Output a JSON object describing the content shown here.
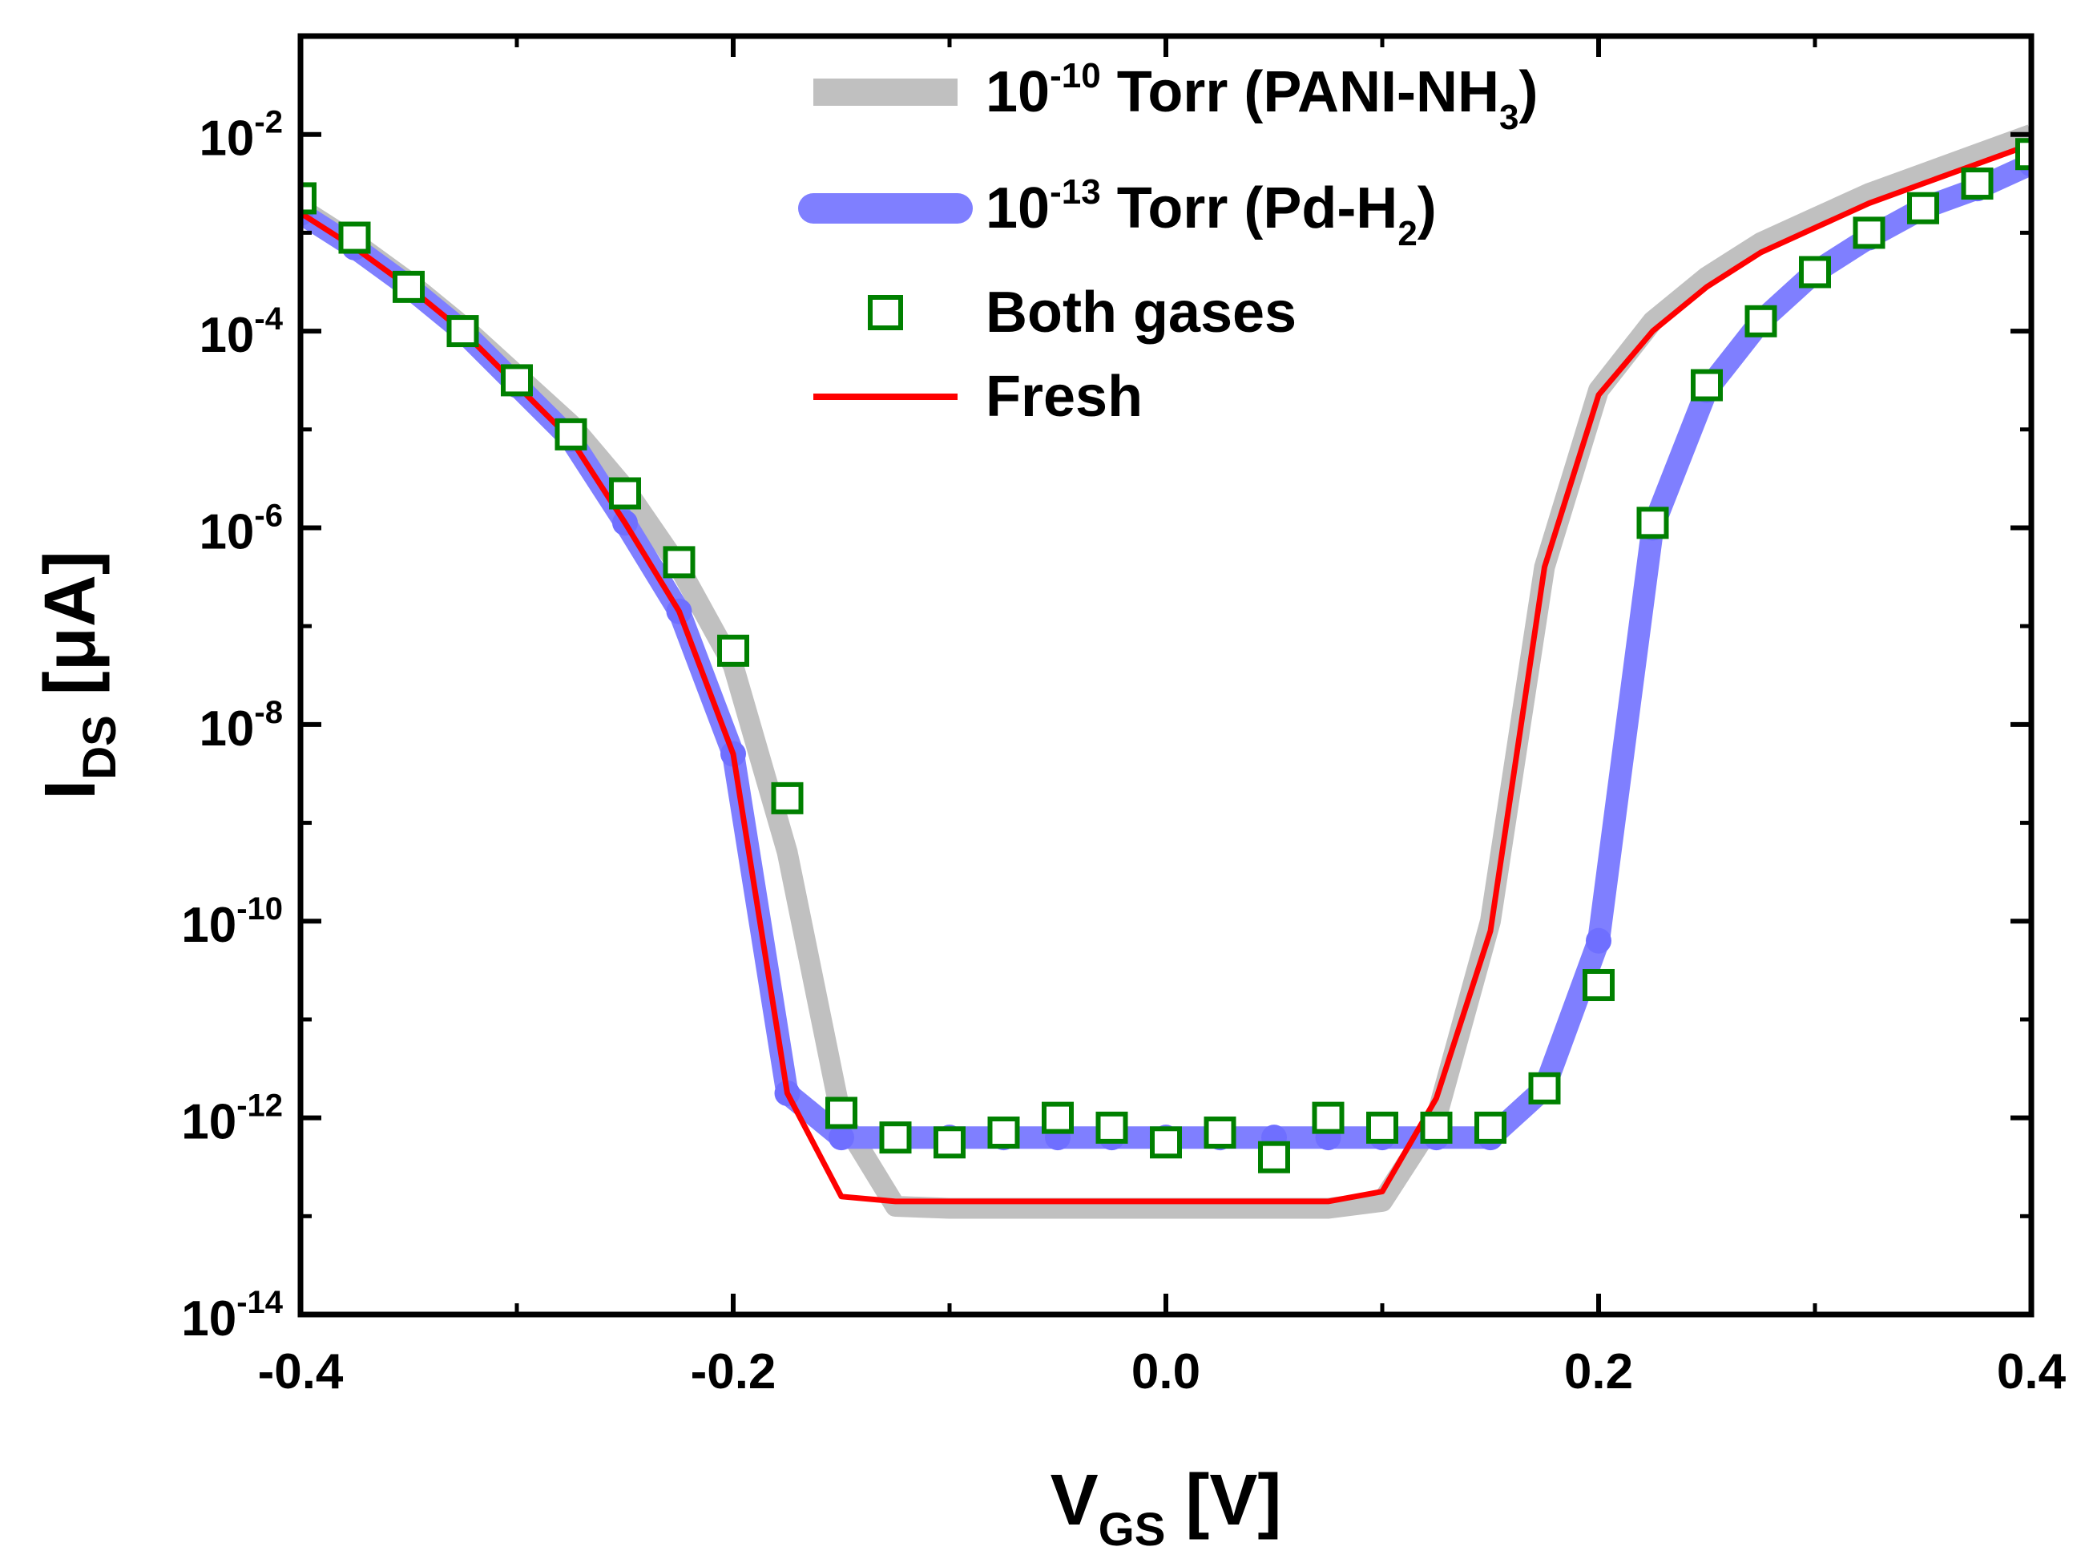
{
  "chart_data": {
    "type": "line",
    "title": "",
    "xlabel": {
      "main": "V",
      "sub": "GS",
      "unit": " [V]"
    },
    "ylabel": {
      "main": "I",
      "sub": "DS",
      "unit": " [μA]"
    },
    "xlim": [
      -0.4,
      0.4
    ],
    "ylim": [
      1e-14,
      0.1
    ],
    "yscale": "log",
    "x_ticks": [
      -0.4,
      -0.2,
      0.0,
      0.2,
      0.4
    ],
    "x_tick_labels": [
      "-0.4",
      "-0.2",
      "0.0",
      "0.2",
      "0.4"
    ],
    "y_ticks": [
      -14,
      -12,
      -10,
      -8,
      -6,
      -4,
      -2
    ],
    "y_tick_labels": [
      {
        "base": "10",
        "exp": "-14"
      },
      {
        "base": "10",
        "exp": "-12"
      },
      {
        "base": "10",
        "exp": "-10"
      },
      {
        "base": "10",
        "exp": "-8"
      },
      {
        "base": "10",
        "exp": "-6"
      },
      {
        "base": "10",
        "exp": "-4"
      },
      {
        "base": "10",
        "exp": "-2"
      }
    ],
    "legend_position": "top-center",
    "series": [
      {
        "name": "10-10 Torr (PANI-NH3)",
        "label_parts": [
          {
            "t": "10",
            "s": "n"
          },
          {
            "t": "-10",
            "s": "sup"
          },
          {
            "t": " Torr (PANI-NH",
            "s": "n"
          },
          {
            "t": "3",
            "s": "sub"
          },
          {
            "t": ")",
            "s": "n"
          }
        ],
        "style": "thick-line",
        "color": "#c0c0c0",
        "x": [
          -0.4,
          -0.375,
          -0.35,
          -0.325,
          -0.3,
          -0.275,
          -0.25,
          -0.225,
          -0.2,
          -0.175,
          -0.15,
          -0.125,
          -0.1,
          -0.075,
          -0.05,
          -0.025,
          0.0,
          0.025,
          0.05,
          0.075,
          0.1,
          0.125,
          0.15,
          0.175,
          0.2,
          0.225,
          0.25,
          0.275,
          0.3,
          0.325,
          0.35,
          0.375,
          0.4
        ],
        "log10_y": [
          -2.75,
          -3.1,
          -3.5,
          -3.95,
          -4.45,
          -4.95,
          -5.6,
          -6.4,
          -7.4,
          -9.3,
          -12.0,
          -12.9,
          -12.92,
          -12.92,
          -12.92,
          -12.92,
          -12.92,
          -12.92,
          -12.92,
          -12.92,
          -12.85,
          -12.0,
          -10.0,
          -6.4,
          -4.6,
          -3.9,
          -3.45,
          -3.1,
          -2.85,
          -2.6,
          -2.4,
          -2.2,
          -2.0
        ]
      },
      {
        "name": "10-13 Torr (Pd-H2)",
        "label_parts": [
          {
            "t": "10",
            "s": "n"
          },
          {
            "t": "-13",
            "s": "sup"
          },
          {
            "t": " Torr (Pd-H",
            "s": "n"
          },
          {
            "t": "2",
            "s": "sub"
          },
          {
            "t": ")",
            "s": "n"
          }
        ],
        "style": "thick-line",
        "color": "#7f7fff",
        "x": [
          -0.4,
          -0.375,
          -0.35,
          -0.325,
          -0.3,
          -0.275,
          -0.25,
          -0.225,
          -0.2,
          -0.175,
          -0.15,
          -0.125,
          -0.1,
          -0.075,
          -0.05,
          -0.025,
          0.0,
          0.025,
          0.05,
          0.075,
          0.1,
          0.125,
          0.15,
          0.175,
          0.2,
          0.225,
          0.25,
          0.275,
          0.3,
          0.325,
          0.35,
          0.375,
          0.4
        ],
        "log10_y": [
          -2.8,
          -3.15,
          -3.55,
          -4.0,
          -4.55,
          -5.1,
          -5.95,
          -6.85,
          -8.3,
          -11.75,
          -12.2,
          -12.2,
          -12.2,
          -12.2,
          -12.2,
          -12.2,
          -12.2,
          -12.2,
          -12.2,
          -12.2,
          -12.2,
          -12.2,
          -12.2,
          -11.7,
          -10.2,
          -6.0,
          -4.6,
          -3.9,
          -3.4,
          -3.05,
          -2.75,
          -2.55,
          -2.3
        ]
      },
      {
        "name": "Both gases",
        "label_parts": [
          {
            "t": "Both gases",
            "s": "n"
          }
        ],
        "style": "open-square",
        "color": "#008000",
        "x": [
          -0.4,
          -0.375,
          -0.35,
          -0.325,
          -0.3,
          -0.275,
          -0.25,
          -0.225,
          -0.2,
          -0.175,
          -0.15,
          -0.125,
          -0.1,
          -0.075,
          -0.05,
          -0.025,
          0.0,
          0.025,
          0.05,
          0.075,
          0.1,
          0.125,
          0.15,
          0.175,
          0.2,
          0.225,
          0.25,
          0.275,
          0.3,
          0.325,
          0.35,
          0.375,
          0.4
        ],
        "log10_y": [
          -2.65,
          -3.05,
          -3.55,
          -4.0,
          -4.5,
          -5.05,
          -5.65,
          -6.35,
          -7.25,
          -8.75,
          -11.95,
          -12.2,
          -12.25,
          -12.15,
          -12.0,
          -12.1,
          -12.25,
          -12.15,
          -12.4,
          -12.0,
          -12.1,
          -12.1,
          -12.1,
          -11.7,
          -10.65,
          -5.95,
          -4.55,
          -3.9,
          -3.4,
          -3.0,
          -2.75,
          -2.5,
          -2.2
        ]
      },
      {
        "name": "Fresh",
        "label_parts": [
          {
            "t": "Fresh",
            "s": "n"
          }
        ],
        "style": "thin-line",
        "color": "#ff0000",
        "x": [
          -0.4,
          -0.375,
          -0.35,
          -0.325,
          -0.3,
          -0.275,
          -0.25,
          -0.225,
          -0.2,
          -0.175,
          -0.15,
          -0.125,
          -0.1,
          -0.075,
          -0.05,
          -0.025,
          0.0,
          0.025,
          0.05,
          0.075,
          0.1,
          0.125,
          0.15,
          0.175,
          0.2,
          0.225,
          0.25,
          0.275,
          0.3,
          0.325,
          0.35,
          0.375,
          0.4
        ],
        "log10_y": [
          -2.8,
          -3.15,
          -3.55,
          -4.0,
          -4.55,
          -5.1,
          -5.95,
          -6.85,
          -8.3,
          -11.75,
          -12.8,
          -12.85,
          -12.85,
          -12.85,
          -12.85,
          -12.85,
          -12.85,
          -12.85,
          -12.85,
          -12.85,
          -12.75,
          -11.8,
          -10.1,
          -6.4,
          -4.65,
          -4.0,
          -3.55,
          -3.2,
          -2.95,
          -2.7,
          -2.5,
          -2.3,
          -2.1
        ]
      }
    ]
  }
}
